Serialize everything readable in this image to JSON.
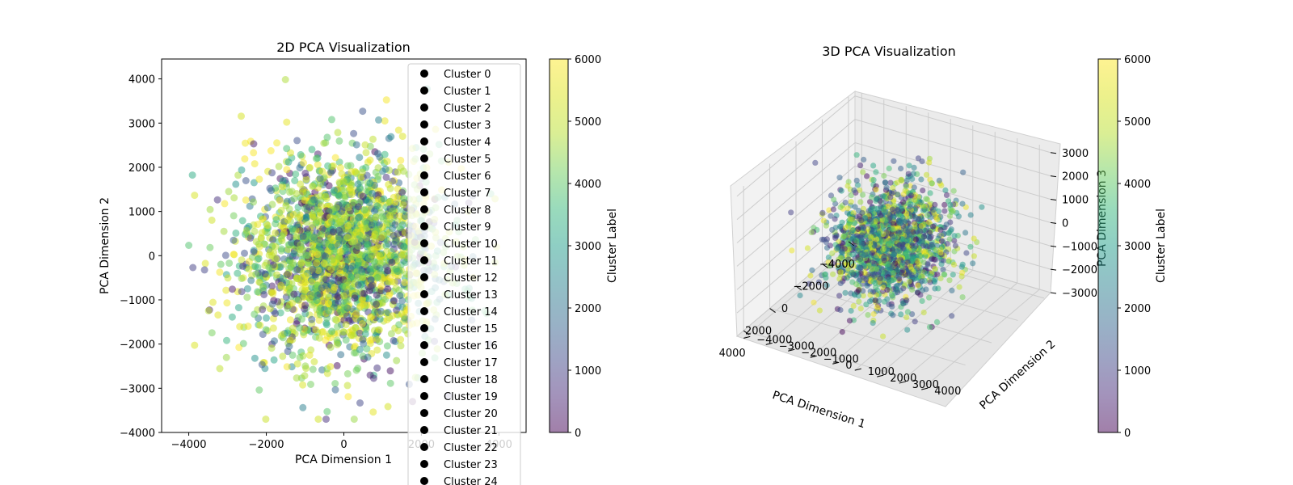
{
  "chart_data": [
    {
      "type": "scatter",
      "title": "2D PCA Visualization",
      "xlabel": "PCA Dimension 1",
      "ylabel": "PCA Dimension 2",
      "xlim": [
        -4700,
        4700
      ],
      "ylim": [
        -4000,
        4450
      ],
      "xticks": [
        -4000,
        -2000,
        0,
        2000,
        4000
      ],
      "xtick_labels": [
        "−4000",
        "−2000",
        "0",
        "2000",
        "4000"
      ],
      "yticks": [
        -4000,
        -3000,
        -2000,
        -1000,
        0,
        1000,
        2000,
        3000,
        4000
      ],
      "ytick_labels": [
        "−4000",
        "−3000",
        "−2000",
        "−1000",
        "0",
        "1000",
        "2000",
        "3000",
        "4000"
      ],
      "grid": false,
      "point_alpha": 0.5,
      "approx_num_points": 6000,
      "point_distribution": {
        "center": [
          0,
          0
        ],
        "spread_x": 1300,
        "spread_y": 1100,
        "x_range": [
          -4000,
          4400
        ],
        "y_range": [
          -3700,
          4100
        ],
        "color_value_range": [
          0,
          6000
        ],
        "note": "points colored by cluster label on viridis scale; high-label (yellow) points concentrated near center"
      },
      "legend": {
        "location": "upper right",
        "marker_color": "#000000",
        "entries": [
          "Cluster 0",
          "Cluster 1",
          "Cluster 2",
          "Cluster 3",
          "Cluster 4",
          "Cluster 5",
          "Cluster 6",
          "Cluster 7",
          "Cluster 8",
          "Cluster 9",
          "Cluster 10",
          "Cluster 11",
          "Cluster 12",
          "Cluster 13",
          "Cluster 14",
          "Cluster 15",
          "Cluster 16",
          "Cluster 17",
          "Cluster 18",
          "Cluster 19",
          "Cluster 20",
          "Cluster 21",
          "Cluster 22",
          "Cluster 23",
          "Cluster 24"
        ]
      },
      "colorbar": {
        "label": "Cluster Label",
        "range": [
          0,
          6000
        ],
        "ticks": [
          0,
          1000,
          2000,
          3000,
          4000,
          5000,
          6000
        ],
        "tick_labels": [
          "0",
          "1000",
          "2000",
          "3000",
          "4000",
          "5000",
          "6000"
        ],
        "colormap": "viridis",
        "alpha": 0.5
      }
    },
    {
      "type": "scatter3d",
      "title": "3D PCA Visualization",
      "xlabel": "PCA Dimension 1",
      "ylabel": "PCA Dimension 2",
      "zlabel": "PCA Dimension 3",
      "xlim": [
        -4500,
        4500
      ],
      "ylim": [
        -4300,
        4500
      ],
      "zlim": [
        -3000,
        3200
      ],
      "xticks": [
        -4000,
        -2000,
        0,
        2000,
        4000
      ],
      "xtick_labels": [
        "−4000",
        "−2000",
        "0",
        "2000",
        "4000"
      ],
      "yticks": [
        -4000,
        -3000,
        -2000,
        -1000,
        0,
        1000,
        2000,
        3000,
        4000
      ],
      "ytick_labels": [
        "−4000",
        "−3000",
        "−2000",
        "−1000",
        "0",
        "1000",
        "2000",
        "3000",
        "4000"
      ],
      "zticks": [
        -3000,
        -2000,
        -1000,
        0,
        1000,
        2000,
        3000
      ],
      "ztick_labels": [
        "−3000",
        "−2000",
        "−1000",
        "0",
        "1000",
        "2000",
        "3000"
      ],
      "grid": true,
      "point_alpha": 0.5,
      "approx_num_points": 6000,
      "point_distribution": {
        "center": [
          0,
          0,
          0
        ],
        "spread": [
          1300,
          1100,
          1000
        ],
        "color_value_range": [
          0,
          6000
        ]
      },
      "colorbar": {
        "label": "Cluster Label",
        "range": [
          0,
          6000
        ],
        "ticks": [
          0,
          1000,
          2000,
          3000,
          4000,
          5000,
          6000
        ],
        "tick_labels": [
          "0",
          "1000",
          "2000",
          "3000",
          "4000",
          "5000",
          "6000"
        ],
        "colormap": "viridis",
        "alpha": 0.5
      }
    }
  ]
}
